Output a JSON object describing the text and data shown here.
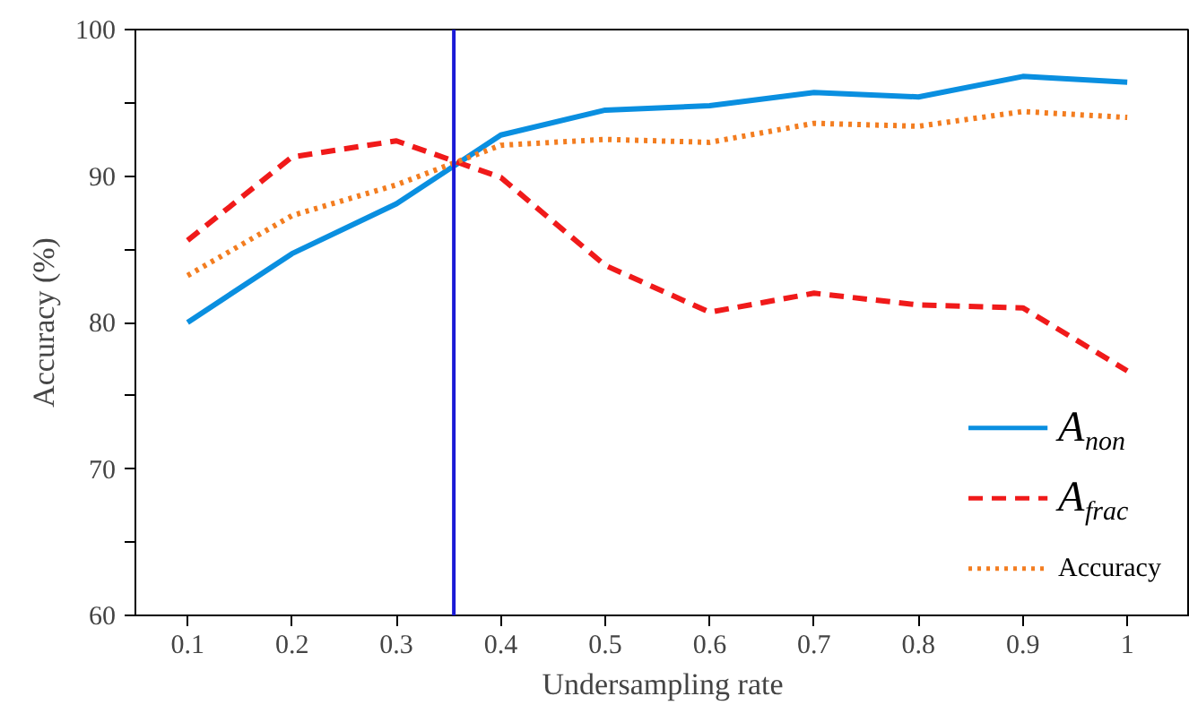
{
  "chart_data": {
    "type": "line",
    "xlabel": "Undersampling rate",
    "ylabel": "Accuracy (%)",
    "x": [
      0.1,
      0.2,
      0.3,
      0.4,
      0.5,
      0.6,
      0.7,
      0.8,
      0.9,
      1
    ],
    "series": [
      {
        "name": "A$_{non}$",
        "color": "#0a8fe0",
        "line_style": "solid",
        "values": [
          80.0,
          84.7,
          88.1,
          92.8,
          94.5,
          94.8,
          95.7,
          95.4,
          96.8,
          96.4
        ]
      },
      {
        "name": "A$_{frac}$",
        "color": "#f01a1a",
        "line_style": "dashed",
        "values": [
          85.6,
          91.3,
          92.4,
          89.9,
          83.9,
          80.7,
          82.0,
          81.2,
          81.0,
          76.7
        ]
      },
      {
        "name": "Accuracy",
        "color": "#f37d20",
        "line_style": "dotted",
        "values": [
          83.2,
          87.3,
          89.4,
          92.1,
          92.5,
          92.3,
          93.6,
          93.4,
          94.4,
          94.0
        ]
      }
    ],
    "xlim": [
      0.05,
      1.06
    ],
    "ylim": [
      60,
      100
    ],
    "xticks": [
      0.1,
      0.2,
      0.3,
      0.4,
      0.5,
      0.6,
      0.7,
      0.8,
      0.9,
      1
    ],
    "yticks": [
      60,
      {
        "value": 65,
        "label": null
      },
      70,
      {
        "value": 75,
        "label": null
      },
      80,
      {
        "value": 85,
        "label": null
      },
      90,
      {
        "value": 95,
        "label": null
      },
      100
    ],
    "ref_lines": [
      {
        "axis": "x",
        "value": 0.355,
        "label": null,
        "color": "#1a1ad6",
        "line_style": "solid"
      }
    ],
    "grid": false,
    "legend": "bottom right",
    "marker": "none"
  }
}
